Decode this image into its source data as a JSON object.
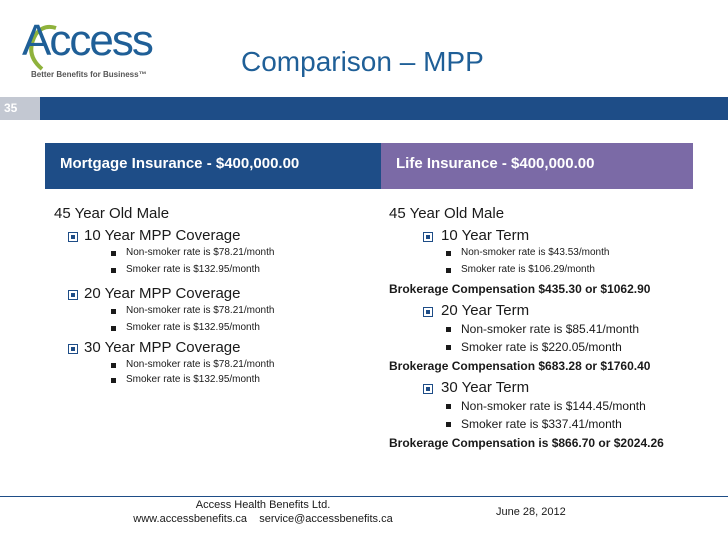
{
  "logo": {
    "word": "Access",
    "tagline": "Better Benefits for Business™"
  },
  "slide": {
    "title": "Comparison – MPP",
    "number": "35"
  },
  "left": {
    "header": "Mortgage Insurance - $400,000.00",
    "subject": "45 Year Old Male",
    "groups": [
      {
        "label": "10 Year MPP Coverage",
        "items": [
          "Non-smoker rate is $78.21/month",
          "Smoker rate is $132.95/month"
        ]
      },
      {
        "label": "20 Year MPP Coverage",
        "items": [
          "Non-smoker rate is $78.21/month",
          "Smoker rate is $132.95/month"
        ]
      },
      {
        "label": "30 Year MPP Coverage",
        "items": [
          "Non-smoker rate is $78.21/month",
          "Smoker rate is $132.95/month"
        ]
      }
    ]
  },
  "right": {
    "header": "Life Insurance - $400,000.00",
    "subject": "45 Year Old Male",
    "groups": [
      {
        "label": "10 Year Term",
        "items": [
          "Non-smoker rate is $43.53/month",
          "Smoker rate is $106.29/month"
        ],
        "compensation": "Brokerage Compensation $435.30 or $1062.90"
      },
      {
        "label": "20 Year Term",
        "items": [
          "Non-smoker rate is $85.41/month",
          "Smoker rate is $220.05/month"
        ],
        "compensation": "Brokerage Compensation $683.28 or  $1760.40"
      },
      {
        "label": "30 Year Term",
        "items": [
          "Non-smoker rate is $144.45/month",
          "Smoker rate is $337.41/month"
        ],
        "compensation": "Brokerage Compensation is $866.70 or $2024.26"
      }
    ]
  },
  "footer": {
    "company": "Access Health Benefits Ltd.",
    "contact": "www.accessbenefits.ca    service@accessbenefits.ca",
    "date": "June 28, 2012"
  },
  "colors": {
    "navy": "#1e4d87",
    "purple": "#7b6aa6",
    "title_blue": "#1f5f97"
  }
}
